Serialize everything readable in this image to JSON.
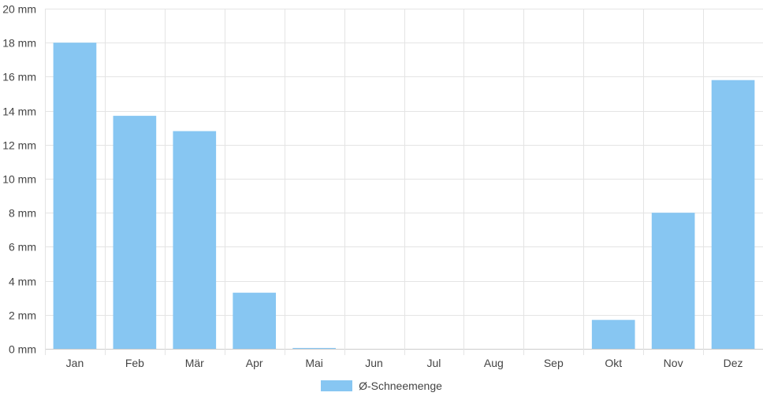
{
  "chart_data": {
    "type": "bar",
    "categories": [
      "Jan",
      "Feb",
      "Mär",
      "Apr",
      "Mai",
      "Jun",
      "Jul",
      "Aug",
      "Sep",
      "Okt",
      "Nov",
      "Dez"
    ],
    "series": [
      {
        "name": "Ø-Schneemenge",
        "values": [
          18.0,
          13.7,
          12.8,
          3.3,
          0.05,
          0,
          0,
          0,
          0,
          1.7,
          8.0,
          15.8
        ]
      }
    ],
    "ylim": [
      0,
      20
    ],
    "ytick_step": 2,
    "y_unit": "mm",
    "ytick_labels": [
      "0 mm",
      "2 mm",
      "4 mm",
      "6 mm",
      "8 mm",
      "10 mm",
      "12 mm",
      "14 mm",
      "16 mm",
      "18 mm",
      "20 mm"
    ],
    "grid": true,
    "legend_position": "bottom",
    "colors": {
      "bar": "#87c6f2",
      "grid": "#e4e4e4",
      "axis": "#cccccc",
      "text": "#444444"
    }
  }
}
